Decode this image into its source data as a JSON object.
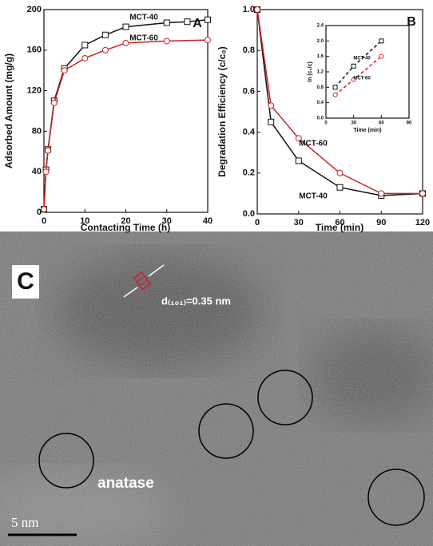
{
  "chart_data": [
    {
      "type": "line",
      "panel": "A",
      "xlabel": "Contacting Time (h)",
      "ylabel": "Adsorbed Amount (mg/g)",
      "xlim": [
        0,
        40
      ],
      "xticks": [
        0,
        10,
        20,
        30,
        40
      ],
      "ylim": [
        0,
        200
      ],
      "yticks": [
        0,
        40,
        80,
        120,
        160,
        200
      ],
      "linestyle": "solid",
      "series": [
        {
          "name": "MCT-40",
          "color": "#111111",
          "marker": "square",
          "x": [
            0,
            0.5,
            1,
            2.5,
            5,
            10,
            15,
            20,
            30,
            35,
            40
          ],
          "values": [
            3,
            42,
            62,
            110,
            142,
            165,
            175,
            183,
            187,
            188,
            190
          ]
        },
        {
          "name": "MCT-60",
          "color": "#cc2222",
          "marker": "circle",
          "x": [
            0,
            0.5,
            1,
            2.5,
            5,
            10,
            15,
            20,
            30,
            40
          ],
          "values": [
            3,
            40,
            61,
            108,
            140,
            152,
            160,
            167,
            169,
            170
          ]
        }
      ]
    },
    {
      "type": "line",
      "panel": "B",
      "xlabel": "Time (min)",
      "ylabel": "Degradation Efficiency (c/c₀)",
      "xlim": [
        0,
        120
      ],
      "xticks": [
        0,
        30,
        60,
        90,
        120
      ],
      "ylim": [
        0,
        1
      ],
      "yticks": [
        {
          "value": 0,
          "label": "0.0"
        },
        0.2,
        0.4,
        0.6,
        0.8,
        {
          "value": 1,
          "label": "1.0"
        }
      ],
      "linestyle": "solid",
      "series": [
        {
          "name": "MCT-40",
          "color": "#111111",
          "marker": "square",
          "x": [
            0,
            10,
            30,
            60,
            90,
            120
          ],
          "values": [
            1,
            0.45,
            0.26,
            0.13,
            0.09,
            0.1
          ]
        },
        {
          "name": "MCT-60",
          "color": "#cc2222",
          "marker": "circle",
          "x": [
            0,
            10,
            30,
            60,
            90,
            120
          ],
          "values": [
            1,
            0.53,
            0.37,
            0.2,
            0.1,
            0.1
          ]
        }
      ]
    },
    {
      "type": "line",
      "xlabel": "Time (min)",
      "ylabel": "ln (c₀/c)",
      "xlim": [
        0,
        90
      ],
      "xticks": [
        0,
        30,
        60,
        90
      ],
      "ylim": [
        0,
        2.4
      ],
      "yticks": [
        {
          "value": 0,
          "label": "0.0"
        },
        0.4,
        0.8,
        1.2,
        1.6,
        {
          "value": 2,
          "label": "2.0"
        },
        2.4
      ],
      "linestyle": "dashed",
      "series": [
        {
          "name": "MCT-40",
          "color": "#111111",
          "marker": "square",
          "x": [
            10,
            30,
            60
          ],
          "values": [
            0.8,
            1.35,
            2.0
          ]
        },
        {
          "name": "MCT-60",
          "color": "#cc2222",
          "marker": "circle",
          "x": [
            10,
            30,
            60
          ],
          "values": [
            0.6,
            1.0,
            1.6
          ]
        }
      ]
    }
  ],
  "image": {
    "panel": "C",
    "lattice": "d₍₁₀₁₎=0.35 nm",
    "phase": "anatase",
    "scale_bar": "5 nm"
  }
}
